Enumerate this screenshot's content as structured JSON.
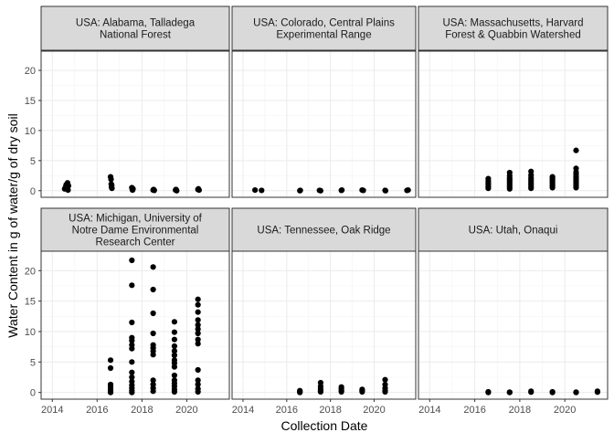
{
  "chart_data": {
    "type": "scatter",
    "facets": true,
    "xlabel": "Collection Date",
    "ylabel": "Water Content in g of water/g of dry soil",
    "xlim": [
      2013.5,
      2021.9
    ],
    "ylim": [
      -1.1,
      23.2
    ],
    "xticks": [
      2014,
      2016,
      2018,
      2020
    ],
    "xtick_labels": [
      "2014",
      "2016",
      "2018",
      "2020"
    ],
    "yticks": [
      0,
      5,
      10,
      15,
      20
    ],
    "ytick_labels": [
      "0",
      "5",
      "10",
      "15",
      "20"
    ],
    "grid": true,
    "point_color": "#000000",
    "panels": [
      {
        "title_lines": [
          "USA: Alabama, Talladega",
          "National Forest"
        ],
        "points": [
          [
            2014.55,
            0.3
          ],
          [
            2014.6,
            0.7
          ],
          [
            2014.62,
            1.0
          ],
          [
            2014.65,
            0.5
          ],
          [
            2014.68,
            1.3
          ],
          [
            2014.7,
            0.1
          ],
          [
            2014.72,
            0.8
          ],
          [
            2016.6,
            2.3
          ],
          [
            2016.62,
            1.9
          ],
          [
            2016.63,
            1.1
          ],
          [
            2016.64,
            0.6
          ],
          [
            2016.65,
            0.9
          ],
          [
            2016.66,
            0.4
          ],
          [
            2017.55,
            0.5
          ],
          [
            2017.57,
            0.2
          ],
          [
            2017.58,
            0.1
          ],
          [
            2017.6,
            0.3
          ],
          [
            2018.5,
            0.1
          ],
          [
            2018.52,
            0.2
          ],
          [
            2018.55,
            0.05
          ],
          [
            2019.5,
            0.1
          ],
          [
            2019.52,
            0.2
          ],
          [
            2019.55,
            0.0
          ],
          [
            2020.5,
            0.2
          ],
          [
            2020.52,
            0.3
          ],
          [
            2020.55,
            0.1
          ]
        ]
      },
      {
        "title_lines": [
          "USA: Colorado, Central Plains",
          "Experimental Range"
        ],
        "points": [
          [
            2014.55,
            0.1
          ],
          [
            2014.85,
            0.05
          ],
          [
            2016.6,
            0.0
          ],
          [
            2016.62,
            0.05
          ],
          [
            2017.5,
            0.05
          ],
          [
            2017.55,
            0.0
          ],
          [
            2018.5,
            0.05
          ],
          [
            2018.52,
            0.1
          ],
          [
            2019.45,
            0.1
          ],
          [
            2019.5,
            0.05
          ],
          [
            2020.5,
            0.05
          ],
          [
            2020.52,
            0.0
          ],
          [
            2021.5,
            0.05
          ],
          [
            2021.55,
            0.1
          ]
        ]
      },
      {
        "title_lines": [
          "USA: Massachusetts, Harvard",
          "Forest & Quabbin Watershed"
        ],
        "points": [
          [
            2016.6,
            2.0
          ],
          [
            2016.6,
            1.6
          ],
          [
            2016.6,
            1.3
          ],
          [
            2016.6,
            1.0
          ],
          [
            2016.6,
            0.7
          ],
          [
            2016.6,
            0.4
          ],
          [
            2017.55,
            3.0
          ],
          [
            2017.55,
            2.5
          ],
          [
            2017.55,
            2.1
          ],
          [
            2017.55,
            1.8
          ],
          [
            2017.55,
            1.5
          ],
          [
            2017.55,
            1.2
          ],
          [
            2017.55,
            0.9
          ],
          [
            2017.55,
            0.6
          ],
          [
            2017.55,
            0.3
          ],
          [
            2018.5,
            3.2
          ],
          [
            2018.5,
            2.6
          ],
          [
            2018.5,
            2.2
          ],
          [
            2018.5,
            1.9
          ],
          [
            2018.5,
            1.6
          ],
          [
            2018.5,
            1.3
          ],
          [
            2018.5,
            1.0
          ],
          [
            2018.5,
            0.7
          ],
          [
            2018.5,
            0.4
          ],
          [
            2019.45,
            2.3
          ],
          [
            2019.45,
            2.0
          ],
          [
            2019.45,
            1.7
          ],
          [
            2019.45,
            1.4
          ],
          [
            2019.45,
            1.1
          ],
          [
            2019.45,
            0.8
          ],
          [
            2019.45,
            0.5
          ],
          [
            2020.5,
            6.7
          ],
          [
            2020.5,
            3.7
          ],
          [
            2020.5,
            3.1
          ],
          [
            2020.5,
            2.7
          ],
          [
            2020.5,
            2.3
          ],
          [
            2020.5,
            2.0
          ],
          [
            2020.5,
            1.7
          ],
          [
            2020.5,
            1.4
          ],
          [
            2020.5,
            1.1
          ],
          [
            2020.5,
            0.8
          ],
          [
            2020.5,
            0.5
          ]
        ]
      },
      {
        "title_lines": [
          "USA: Michigan, University of",
          "Notre Dame Environmental",
          "Research Center"
        ],
        "points": [
          [
            2016.6,
            5.3
          ],
          [
            2016.6,
            4.0
          ],
          [
            2016.6,
            1.3
          ],
          [
            2016.6,
            0.9
          ],
          [
            2016.6,
            0.5
          ],
          [
            2016.6,
            0.2
          ],
          [
            2016.6,
            0.0
          ],
          [
            2017.55,
            21.7
          ],
          [
            2017.55,
            17.6
          ],
          [
            2017.55,
            11.5
          ],
          [
            2017.55,
            9.0
          ],
          [
            2017.55,
            8.5
          ],
          [
            2017.55,
            7.8
          ],
          [
            2017.55,
            7.2
          ],
          [
            2017.55,
            5.0
          ],
          [
            2017.55,
            3.3
          ],
          [
            2017.55,
            2.5
          ],
          [
            2017.55,
            1.8
          ],
          [
            2017.55,
            1.2
          ],
          [
            2017.55,
            0.7
          ],
          [
            2017.55,
            0.3
          ],
          [
            2017.55,
            0.0
          ],
          [
            2018.5,
            20.6
          ],
          [
            2018.5,
            16.9
          ],
          [
            2018.5,
            13.0
          ],
          [
            2018.5,
            9.7
          ],
          [
            2018.5,
            7.8
          ],
          [
            2018.5,
            7.3
          ],
          [
            2018.5,
            6.8
          ],
          [
            2018.5,
            6.2
          ],
          [
            2018.5,
            2.0
          ],
          [
            2018.5,
            1.3
          ],
          [
            2018.5,
            0.7
          ],
          [
            2018.5,
            0.2
          ],
          [
            2019.45,
            11.6
          ],
          [
            2019.45,
            9.9
          ],
          [
            2019.45,
            8.7
          ],
          [
            2019.45,
            7.6
          ],
          [
            2019.45,
            6.8
          ],
          [
            2019.45,
            6.1
          ],
          [
            2019.45,
            5.3
          ],
          [
            2019.45,
            4.8
          ],
          [
            2019.45,
            4.2
          ],
          [
            2019.45,
            2.8
          ],
          [
            2019.45,
            2.0
          ],
          [
            2019.45,
            1.5
          ],
          [
            2019.45,
            1.0
          ],
          [
            2019.45,
            0.5
          ],
          [
            2019.45,
            0.1
          ],
          [
            2020.5,
            15.3
          ],
          [
            2020.5,
            14.4
          ],
          [
            2020.5,
            13.2
          ],
          [
            2020.5,
            11.9
          ],
          [
            2020.5,
            11.1
          ],
          [
            2020.5,
            10.4
          ],
          [
            2020.5,
            9.7
          ],
          [
            2020.5,
            8.7
          ],
          [
            2020.5,
            8.0
          ],
          [
            2020.5,
            3.7
          ],
          [
            2020.5,
            2.0
          ],
          [
            2020.5,
            1.3
          ],
          [
            2020.5,
            0.6
          ],
          [
            2020.5,
            0.1
          ]
        ]
      },
      {
        "title_lines": [
          "USA: Tennessee, Oak Ridge"
        ],
        "points": [
          [
            2016.6,
            0.3
          ],
          [
            2016.6,
            0.1
          ],
          [
            2016.6,
            0.0
          ],
          [
            2017.55,
            1.6
          ],
          [
            2017.55,
            1.0
          ],
          [
            2017.55,
            0.6
          ],
          [
            2017.55,
            0.3
          ],
          [
            2017.55,
            0.1
          ],
          [
            2018.5,
            0.9
          ],
          [
            2018.5,
            0.6
          ],
          [
            2018.5,
            0.3
          ],
          [
            2018.5,
            0.1
          ],
          [
            2019.45,
            0.5
          ],
          [
            2019.45,
            0.3
          ],
          [
            2019.45,
            0.1
          ],
          [
            2020.5,
            2.1
          ],
          [
            2020.5,
            1.3
          ],
          [
            2020.5,
            0.7
          ],
          [
            2020.5,
            0.3
          ],
          [
            2020.5,
            0.1
          ]
        ]
      },
      {
        "title_lines": [
          "USA: Utah, Onaqui"
        ],
        "points": [
          [
            2016.6,
            0.1
          ],
          [
            2016.6,
            0.0
          ],
          [
            2017.55,
            0.05
          ],
          [
            2017.55,
            0.0
          ],
          [
            2018.5,
            0.2
          ],
          [
            2018.5,
            0.05
          ],
          [
            2019.45,
            0.1
          ],
          [
            2019.45,
            0.0
          ],
          [
            2020.5,
            0.05
          ],
          [
            2020.5,
            0.0
          ],
          [
            2021.45,
            0.2
          ],
          [
            2021.45,
            0.05
          ]
        ]
      }
    ]
  }
}
